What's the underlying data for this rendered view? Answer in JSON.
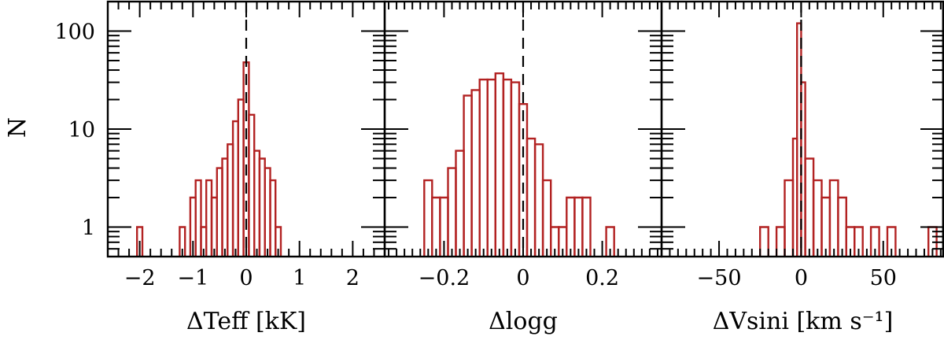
{
  "figure": {
    "ylabel": "N",
    "y_scale": "log",
    "ylim": [
      0.5,
      200
    ],
    "y_ticks": [
      {
        "value": 1,
        "label": "1"
      },
      {
        "value": 10,
        "label": "10"
      },
      {
        "value": 100,
        "label": "100"
      }
    ],
    "colors": {
      "histogram": "#b22222",
      "frame": "#000000",
      "reference": "#000000"
    }
  },
  "chart_data": [
    {
      "type": "histogram",
      "xlabel": "ΔTeff [kK]",
      "xlim": [
        -2.6,
        2.6
      ],
      "x_major_ticks": [
        {
          "value": -2,
          "label": "−2"
        },
        {
          "value": -1,
          "label": "−1"
        },
        {
          "value": 0,
          "label": "0"
        },
        {
          "value": 1,
          "label": "1"
        },
        {
          "value": 2,
          "label": "2"
        }
      ],
      "x_minor_step": 0.2,
      "reference_x": 0,
      "bins": [
        {
          "x0": -2.05,
          "x1": -1.95,
          "count": 1
        },
        {
          "x0": -1.25,
          "x1": -1.15,
          "count": 1
        },
        {
          "x0": -1.05,
          "x1": -0.95,
          "count": 2
        },
        {
          "x0": -0.95,
          "x1": -0.85,
          "count": 3
        },
        {
          "x0": -0.85,
          "x1": -0.75,
          "count": 1
        },
        {
          "x0": -0.75,
          "x1": -0.65,
          "count": 3
        },
        {
          "x0": -0.65,
          "x1": -0.55,
          "count": 2
        },
        {
          "x0": -0.55,
          "x1": -0.45,
          "count": 4
        },
        {
          "x0": -0.45,
          "x1": -0.35,
          "count": 5
        },
        {
          "x0": -0.35,
          "x1": -0.25,
          "count": 7
        },
        {
          "x0": -0.25,
          "x1": -0.15,
          "count": 12
        },
        {
          "x0": -0.15,
          "x1": -0.05,
          "count": 20
        },
        {
          "x0": -0.05,
          "x1": 0.05,
          "count": 48
        },
        {
          "x0": 0.05,
          "x1": 0.15,
          "count": 14
        },
        {
          "x0": 0.15,
          "x1": 0.25,
          "count": 6
        },
        {
          "x0": 0.25,
          "x1": 0.35,
          "count": 5
        },
        {
          "x0": 0.35,
          "x1": 0.45,
          "count": 4
        },
        {
          "x0": 0.45,
          "x1": 0.55,
          "count": 3
        },
        {
          "x0": 0.55,
          "x1": 0.65,
          "count": 1
        }
      ]
    },
    {
      "type": "histogram",
      "xlabel": "Δlogg",
      "xlim": [
        -0.35,
        0.35
      ],
      "x_major_ticks": [
        {
          "value": -0.2,
          "label": "−0.2"
        },
        {
          "value": 0,
          "label": "0"
        },
        {
          "value": 0.2,
          "label": "0.2"
        }
      ],
      "x_minor_step": 0.02,
      "reference_x": 0,
      "bins": [
        {
          "x0": -0.25,
          "x1": -0.23,
          "count": 3
        },
        {
          "x0": -0.23,
          "x1": -0.21,
          "count": 2
        },
        {
          "x0": -0.21,
          "x1": -0.19,
          "count": 2
        },
        {
          "x0": -0.19,
          "x1": -0.17,
          "count": 4
        },
        {
          "x0": -0.17,
          "x1": -0.15,
          "count": 6
        },
        {
          "x0": -0.15,
          "x1": -0.13,
          "count": 22
        },
        {
          "x0": -0.13,
          "x1": -0.11,
          "count": 25
        },
        {
          "x0": -0.11,
          "x1": -0.09,
          "count": 32
        },
        {
          "x0": -0.09,
          "x1": -0.07,
          "count": 32
        },
        {
          "x0": -0.07,
          "x1": -0.05,
          "count": 37
        },
        {
          "x0": -0.05,
          "x1": -0.03,
          "count": 32
        },
        {
          "x0": -0.03,
          "x1": -0.01,
          "count": 30
        },
        {
          "x0": -0.01,
          "x1": 0.01,
          "count": 18
        },
        {
          "x0": 0.01,
          "x1": 0.03,
          "count": 8
        },
        {
          "x0": 0.03,
          "x1": 0.05,
          "count": 7
        },
        {
          "x0": 0.05,
          "x1": 0.07,
          "count": 3
        },
        {
          "x0": 0.07,
          "x1": 0.09,
          "count": 1
        },
        {
          "x0": 0.09,
          "x1": 0.11,
          "count": 1
        },
        {
          "x0": 0.11,
          "x1": 0.13,
          "count": 2
        },
        {
          "x0": 0.13,
          "x1": 0.15,
          "count": 2
        },
        {
          "x0": 0.15,
          "x1": 0.17,
          "count": 2
        },
        {
          "x0": 0.21,
          "x1": 0.23,
          "count": 1
        }
      ]
    },
    {
      "type": "histogram",
      "xlabel": "ΔVsini [km s⁻¹]",
      "xlim": [
        -85,
        87
      ],
      "x_major_ticks": [
        {
          "value": -50,
          "label": "−50"
        },
        {
          "value": 0,
          "label": "0"
        },
        {
          "value": 50,
          "label": "50"
        }
      ],
      "x_minor_step": 5,
      "reference_x": 0,
      "bins": [
        {
          "x0": -25,
          "x1": -20,
          "count": 1
        },
        {
          "x0": -15,
          "x1": -10,
          "count": 1
        },
        {
          "x0": -10,
          "x1": -5,
          "count": 3
        },
        {
          "x0": -5,
          "x1": -2.5,
          "count": 8
        },
        {
          "x0": -2.5,
          "x1": 0,
          "count": 120
        },
        {
          "x0": 0,
          "x1": 2.5,
          "count": 30
        },
        {
          "x0": 2.5,
          "x1": 7.5,
          "count": 5
        },
        {
          "x0": 7.5,
          "x1": 12.5,
          "count": 3
        },
        {
          "x0": 12.5,
          "x1": 17.5,
          "count": 2
        },
        {
          "x0": 17.5,
          "x1": 22.5,
          "count": 3
        },
        {
          "x0": 22.5,
          "x1": 27.5,
          "count": 2
        },
        {
          "x0": 27.5,
          "x1": 32.5,
          "count": 1
        },
        {
          "x0": 32.5,
          "x1": 37.5,
          "count": 1
        },
        {
          "x0": 42.5,
          "x1": 47.5,
          "count": 1
        },
        {
          "x0": 52.5,
          "x1": 57.5,
          "count": 1
        },
        {
          "x0": 77.5,
          "x1": 82.5,
          "count": 1
        }
      ]
    }
  ]
}
